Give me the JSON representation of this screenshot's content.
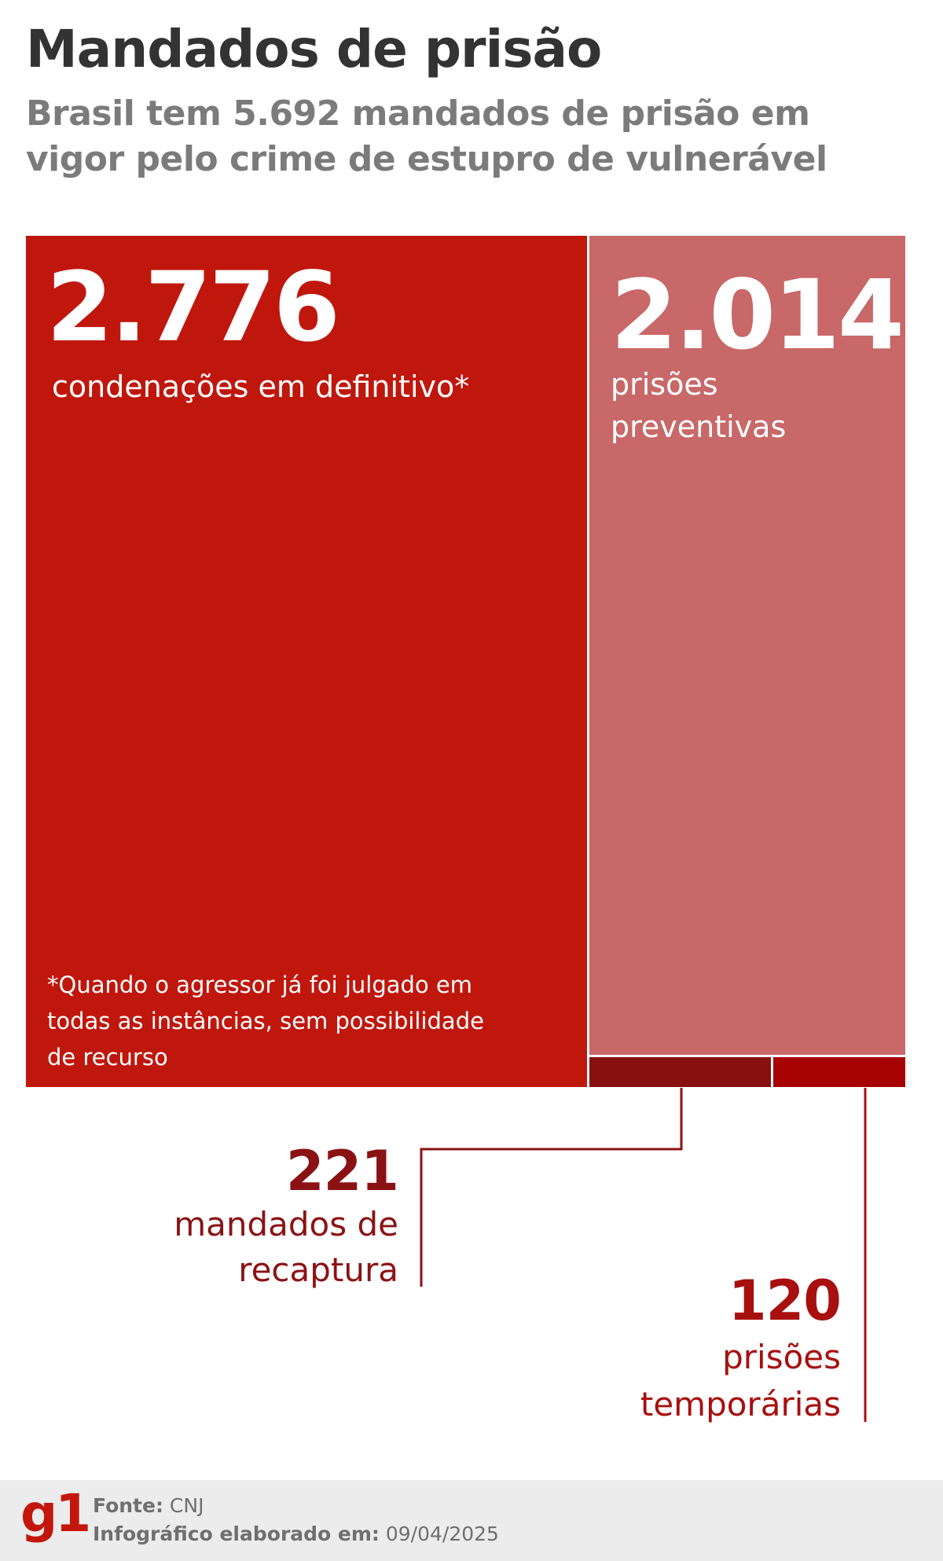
{
  "header": {
    "title": "Mandados de prisão",
    "subtitle": "Brasil tem 5.692 mandados de prisão em vigor pelo crime de estupro de vulnerável"
  },
  "chart_data": {
    "type": "treemap",
    "total": 5692,
    "items": [
      {
        "value": 2776,
        "value_label": "2.776",
        "label": "condenações em definitivo*",
        "color": "#c0170d"
      },
      {
        "value": 2014,
        "value_label": "2.014",
        "label_lines": [
          "prisões",
          "preventivas"
        ],
        "color": "#c86868"
      },
      {
        "value": 221,
        "value_label": "221",
        "label_lines": [
          "mandados de",
          "recaptura"
        ],
        "color": "#86110f"
      },
      {
        "value": 120,
        "value_label": "120",
        "label_lines": [
          "prisões",
          "temporárias"
        ],
        "color": "#a80303"
      }
    ],
    "footnote": "*Quando o agressor já foi julgado em todas as instâncias, sem possibilidade de recurso"
  },
  "footer": {
    "logo": "g1",
    "source_label": "Fonte:",
    "source_value": "CNJ",
    "date_label": "Infográfico elaborado em:",
    "date_value": "09/04/2025"
  }
}
